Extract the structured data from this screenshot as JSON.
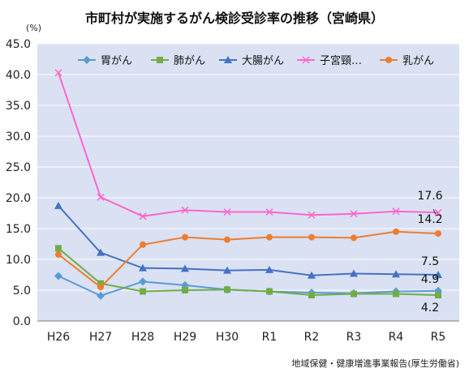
{
  "chart_data": {
    "type": "line",
    "title": "市町村が実施するがん検診受診率の推移（宮崎県）",
    "unit_label": "(%)",
    "source": "地域保健・健康増進事業報告(厚生労働省)",
    "categories": [
      "H26",
      "H27",
      "H28",
      "H29",
      "H30",
      "R1",
      "R2",
      "R3",
      "R4",
      "R5"
    ],
    "ylim": [
      0,
      45
    ],
    "yticks": [
      "0.0",
      "5.0",
      "10.0",
      "15.0",
      "20.0",
      "25.0",
      "30.0",
      "35.0",
      "40.0",
      "45.0"
    ],
    "grid": true,
    "legend_position": "top",
    "plot_background": "#dae1f3",
    "series": [
      {
        "name": "胃がん",
        "color": "#5b9bd5",
        "marker": "diamond",
        "values": [
          7.3,
          4.1,
          6.4,
          5.8,
          5.1,
          4.8,
          4.6,
          4.5,
          4.8,
          4.9
        ]
      },
      {
        "name": "肺がん",
        "color": "#70ad47",
        "marker": "square",
        "values": [
          11.8,
          6.1,
          4.8,
          5.0,
          5.1,
          4.8,
          4.2,
          4.4,
          4.4,
          4.2
        ]
      },
      {
        "name": "大腸がん",
        "color": "#4472c4",
        "marker": "triangle",
        "values": [
          18.7,
          11.1,
          8.6,
          8.5,
          8.2,
          8.3,
          7.4,
          7.7,
          7.6,
          7.5
        ]
      },
      {
        "name": "子宮頸…",
        "color": "#ff66cc",
        "marker": "x",
        "values": [
          40.3,
          20.1,
          17.0,
          18.0,
          17.7,
          17.7,
          17.2,
          17.4,
          17.8,
          17.6
        ]
      },
      {
        "name": "乳がん",
        "color": "#ed7d31",
        "marker": "circle",
        "values": [
          10.8,
          5.5,
          12.4,
          13.6,
          13.2,
          13.6,
          13.6,
          13.5,
          14.5,
          14.2
        ]
      }
    ],
    "data_labels": [
      {
        "series": 3,
        "index": 9,
        "text": "17.6"
      },
      {
        "series": 4,
        "index": 9,
        "text": "14.2"
      },
      {
        "series": 2,
        "index": 9,
        "text": "7.5"
      },
      {
        "series": 0,
        "index": 9,
        "text": "4.9"
      },
      {
        "series": 1,
        "index": 9,
        "text": "4.2"
      }
    ]
  }
}
